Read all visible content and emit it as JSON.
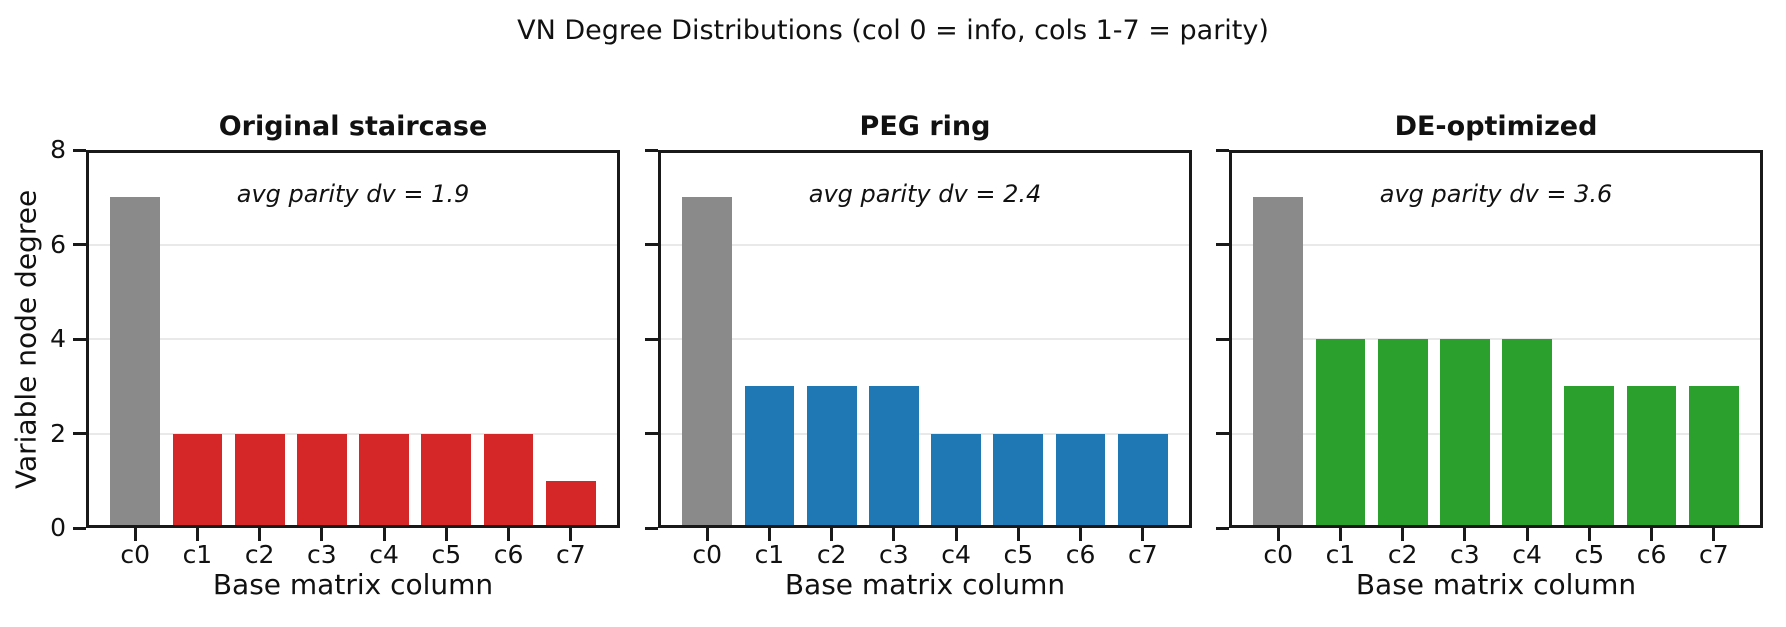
{
  "figure": {
    "title": "VN Degree Distributions (col 0 = info, cols 1-7 = parity)"
  },
  "chart_data": [
    {
      "type": "bar",
      "title": "Original staircase",
      "annotation": "avg parity dv = 1.9",
      "categories": [
        "c0",
        "c1",
        "c2",
        "c3",
        "c4",
        "c5",
        "c6",
        "c7"
      ],
      "values": [
        7,
        2,
        2,
        2,
        2,
        2,
        2,
        1
      ],
      "info_bar_color": "#8a8a8a",
      "parity_bar_color": "#d62728",
      "xlabel": "Base matrix column",
      "ylabel": "Variable node degree",
      "ylim": [
        0,
        8
      ],
      "yticks": [
        0,
        2,
        4,
        6,
        8
      ],
      "grid": true,
      "show_ytick_labels": true
    },
    {
      "type": "bar",
      "title": "PEG ring",
      "annotation": "avg parity dv = 2.4",
      "categories": [
        "c0",
        "c1",
        "c2",
        "c3",
        "c4",
        "c5",
        "c6",
        "c7"
      ],
      "values": [
        7,
        3,
        3,
        3,
        2,
        2,
        2,
        2
      ],
      "info_bar_color": "#8a8a8a",
      "parity_bar_color": "#1f77b4",
      "xlabel": "Base matrix column",
      "ylabel": "",
      "ylim": [
        0,
        8
      ],
      "yticks": [
        0,
        2,
        4,
        6,
        8
      ],
      "grid": true,
      "show_ytick_labels": false
    },
    {
      "type": "bar",
      "title": "DE-optimized",
      "annotation": "avg parity dv = 3.6",
      "categories": [
        "c0",
        "c1",
        "c2",
        "c3",
        "c4",
        "c5",
        "c6",
        "c7"
      ],
      "values": [
        7,
        4,
        4,
        4,
        4,
        3,
        3,
        3
      ],
      "info_bar_color": "#8a8a8a",
      "parity_bar_color": "#2ca02c",
      "xlabel": "Base matrix column",
      "ylabel": "",
      "ylim": [
        0,
        8
      ],
      "yticks": [
        0,
        2,
        4,
        6,
        8
      ],
      "grid": true,
      "show_ytick_labels": false
    }
  ]
}
